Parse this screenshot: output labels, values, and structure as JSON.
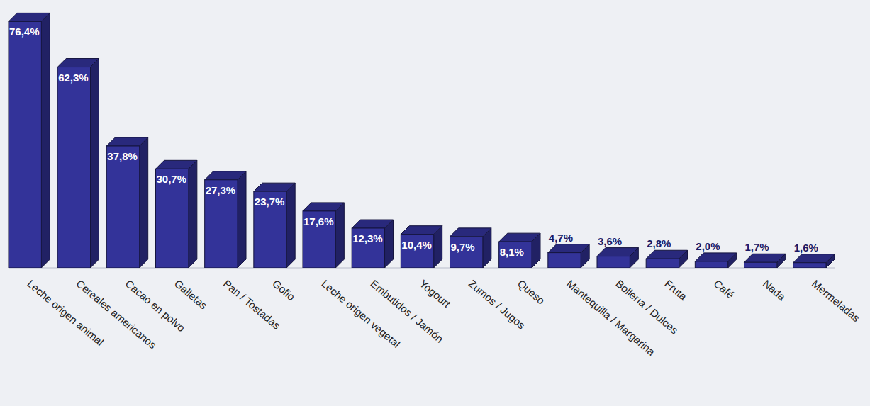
{
  "chart_data": {
    "type": "bar",
    "categories": [
      "Leche origen animal",
      "Cereales americanos",
      "Cacao en polvo",
      "Galletas",
      "Pan / Tostadas",
      "Gofio",
      "Leche origen vegetal",
      "Embutidos / Jamón",
      "Yogourt",
      "Zumos / Jugos",
      "Queso",
      "Mantequilla / Margarina",
      "Bollería / Dulces",
      "Fruta",
      "Café",
      "Nada",
      "Mermeladas"
    ],
    "values": [
      76.4,
      62.3,
      37.8,
      30.7,
      27.3,
      23.7,
      17.6,
      12.3,
      10.4,
      9.7,
      8.1,
      4.7,
      3.6,
      2.8,
      2.0,
      1.7,
      1.6
    ],
    "value_labels": [
      "76,4%",
      "62,3%",
      "37,8%",
      "30,7%",
      "27,3%",
      "23,7%",
      "17,6%",
      "12,3%",
      "10,4%",
      "9,7%",
      "8,1%",
      "4,7%",
      "3,6%",
      "2,8%",
      "2,0%",
      "1,7%",
      "1,6%"
    ],
    "color": "#333399",
    "ylim": [
      0,
      80
    ],
    "data_labels": true,
    "tick_labels": "x"
  }
}
